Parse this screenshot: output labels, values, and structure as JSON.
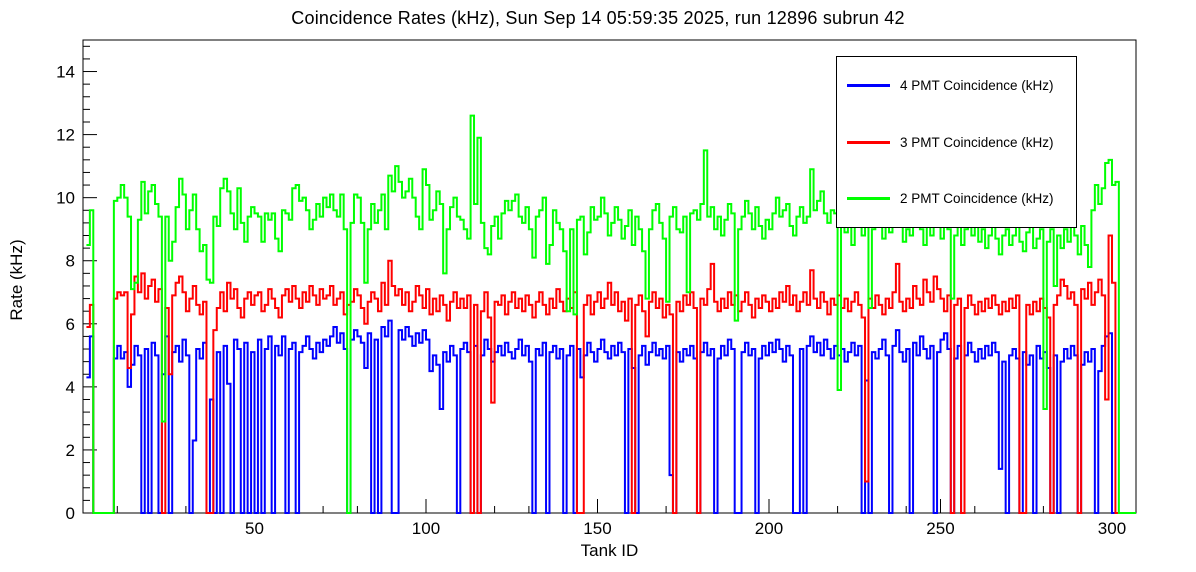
{
  "title": "Coincidence Rates (kHz), Sun Sep 14 05:59:35 2025, run 12896 subrun 42",
  "legend": {
    "items": [
      {
        "label": "4 PMT Coincidence (kHz)",
        "color": "#0000ff"
      },
      {
        "label": "3 PMT Coincidence (kHz)",
        "color": "#ff0000"
      },
      {
        "label": "2 PMT Coincidence (kHz)",
        "color": "#00ff00"
      }
    ]
  },
  "chart_data": {
    "type": "line",
    "subtype": "step-histogram",
    "title": "Coincidence Rates (kHz), Sun Sep 14 05:59:35 2025, run 12896 subrun 42",
    "xlabel": "Tank ID",
    "ylabel": "Rate (kHz)",
    "xlim": [
      0,
      307
    ],
    "ylim": [
      0,
      15
    ],
    "grid": false,
    "legend_position": "top-right",
    "x_ticks_major": [
      50,
      100,
      150,
      200,
      250,
      300
    ],
    "x_tick_labels": [
      "50",
      "100",
      "150",
      "200",
      "250",
      "300"
    ],
    "x_minor_step": 10,
    "y_ticks_major": [
      0,
      2,
      4,
      6,
      8,
      10,
      12,
      14
    ],
    "y_tick_labels": [
      "0",
      "2",
      "4",
      "6",
      "8",
      "10",
      "12",
      "14"
    ],
    "y_minor_step": 0.4,
    "x_bin_start": 1,
    "series": [
      {
        "name": "4 PMT Coincidence (kHz)",
        "color": "#0000ff",
        "values": [
          4.3,
          5.6,
          0,
          0,
          0,
          0,
          0,
          0,
          4.9,
          5.3,
          4.9,
          5.1,
          4.0,
          4.7,
          5.3,
          5.0,
          0,
          5.2,
          0,
          5.4,
          5.0,
          0,
          4.4,
          5.6,
          0,
          5.1,
          5.3,
          4.8,
          5.5,
          5.0,
          0,
          2.3,
          5.2,
          4.9,
          5.4,
          0,
          3.6,
          0,
          5.1,
          0,
          5.3,
          4.1,
          0,
          5.5,
          5.2,
          0,
          5.4,
          0,
          5.1,
          0,
          5.5,
          0,
          5.2,
          5.6,
          0,
          5.3,
          5.0,
          5.6,
          0,
          5.2,
          5.4,
          0,
          5.1,
          5.3,
          5.6,
          5.2,
          4.9,
          5.4,
          5.1,
          5.5,
          5.3,
          5.6,
          5.9,
          5.4,
          5.7,
          5.2,
          0,
          5.5,
          5.8,
          5.6,
          5.4,
          4.6,
          5.7,
          0,
          5.5,
          0,
          5.9,
          5.6,
          6.1,
          0,
          0,
          5.8,
          5.5,
          5.9,
          5.6,
          5.3,
          5.7,
          5.4,
          5.8,
          5.5,
          4.5,
          5.0,
          4.7,
          3.3,
          5.1,
          4.8,
          5.3,
          5.0,
          0,
          5.2,
          5.4,
          5.1,
          0,
          5.3,
          0,
          5.0,
          5.5,
          5.2,
          4.8,
          5.1,
          5.3,
          5.0,
          5.4,
          5.1,
          4.9,
          5.2,
          5.5,
          5.0,
          5.3,
          4.8,
          0,
          5.2,
          5.0,
          5.4,
          0,
          5.1,
          5.3,
          4.9,
          5.2,
          0,
          5.0,
          5.3,
          0,
          5.2,
          4.3,
          5.0,
          5.4,
          5.1,
          4.8,
          5.2,
          5.5,
          5.1,
          4.9,
          5.3,
          5.0,
          5.4,
          5.1,
          0,
          5.2,
          4.6,
          0,
          5.0,
          5.3,
          4.7,
          5.1,
          5.4,
          5.0,
          5.2,
          4.9,
          5.3,
          1.2,
          0,
          5.1,
          4.8,
          5.2,
          5.0,
          5.3,
          4.9,
          0,
          5.1,
          5.4,
          5.0,
          5.2,
          0,
          4.9,
          5.3,
          5.0,
          5.5,
          5.2,
          0,
          0,
          5.1,
          5.4,
          5.0,
          5.2,
          0,
          4.9,
          5.3,
          5.0,
          5.4,
          5.1,
          5.5,
          5.2,
          4.8,
          5.3,
          5.0,
          0,
          0,
          5.2,
          0,
          5.3,
          5.6,
          5.1,
          5.4,
          5.0,
          5.5,
          5.2,
          4.9,
          5.3,
          5.0,
          5.2,
          4.8,
          5.1,
          5.4,
          5.0,
          5.3,
          0,
          4.2,
          0,
          5.1,
          4.9,
          5.2,
          5.5,
          5.0,
          0,
          5.3,
          5.8,
          5.1,
          4.8,
          5.2,
          0,
          5.4,
          5.0,
          5.6,
          5.2,
          4.9,
          5.3,
          0,
          5.1,
          5.5,
          5.7,
          5.2,
          0,
          4.9,
          5.3,
          0,
          5.0,
          5.4,
          5.1,
          4.8,
          5.2,
          4.9,
          5.3,
          5.0,
          5.4,
          5.1,
          1.4,
          4.8,
          0,
          5.0,
          5.2,
          4.9,
          0,
          5.1,
          4.7,
          5.0,
          0,
          5.3,
          4.9,
          5.1,
          4.6,
          0,
          5.0,
          0,
          4.8,
          5.2,
          4.9,
          5.3,
          5.0,
          0,
          4.7,
          5.1,
          4.8,
          5.2,
          0,
          4.5,
          5.3,
          5.6,
          5.7,
          0,
          0,
          0,
          0,
          0,
          0,
          0
        ]
      },
      {
        "name": "3 PMT Coincidence (kHz)",
        "color": "#ff0000",
        "values": [
          5.9,
          6.6,
          0,
          0,
          0,
          0,
          0,
          0,
          6.8,
          7.0,
          6.9,
          7.0,
          4.6,
          6.3,
          7.5,
          7.0,
          7.6,
          6.8,
          7.2,
          7.4,
          6.7,
          7.1,
          0,
          6.5,
          4.4,
          6.9,
          7.3,
          7.5,
          7.0,
          6.4,
          6.8,
          7.2,
          6.6,
          6.3,
          6.7,
          0,
          0,
          5.8,
          6.5,
          7.0,
          6.4,
          7.3,
          6.8,
          7.1,
          6.5,
          6.2,
          6.8,
          7.0,
          6.6,
          6.9,
          7.0,
          6.4,
          6.6,
          7.1,
          6.8,
          6.5,
          6.2,
          6.9,
          7.1,
          6.7,
          7.2,
          6.8,
          6.5,
          7.0,
          6.7,
          7.2,
          6.9,
          6.6,
          7.1,
          6.8,
          6.9,
          7.2,
          6.6,
          6.8,
          7.0,
          6.3,
          6.6,
          6.7,
          7.1,
          6.9,
          6.5,
          6.0,
          6.7,
          7.0,
          6.8,
          6.4,
          7.3,
          6.6,
          8.0,
          7.2,
          6.9,
          7.1,
          6.6,
          7.0,
          6.4,
          6.7,
          7.2,
          6.9,
          6.5,
          7.1,
          6.3,
          6.8,
          6.4,
          6.9,
          6.6,
          6.1,
          6.7,
          7.0,
          6.5,
          6.8,
          6.5,
          6.9,
          0,
          6.6,
          0,
          6.4,
          7.0,
          6.2,
          3.5,
          6.7,
          6.6,
          6.9,
          6.3,
          6.7,
          7.0,
          6.5,
          6.8,
          6.4,
          6.9,
          6.6,
          6.2,
          6.7,
          7.0,
          6.6,
          6.3,
          6.8,
          6.5,
          7.1,
          6.7,
          6.4,
          6.8,
          6.5,
          7.0,
          0,
          0,
          6.6,
          6.9,
          6.3,
          6.7,
          7.0,
          6.5,
          6.8,
          7.3,
          6.6,
          7.0,
          6.4,
          6.7,
          6.1,
          6.8,
          0,
          6.6,
          6.9,
          6.4,
          5.6,
          6.7,
          7.0,
          6.5,
          6.8,
          6.2,
          6.6,
          6.3,
          0,
          6.7,
          6.4,
          6.9,
          6.6,
          7.0,
          6.5,
          0,
          6.8,
          6.6,
          7.1,
          7.9,
          6.7,
          6.4,
          6.8,
          6.5,
          7.0,
          6.6,
          6.9,
          6.4,
          6.7,
          7.0,
          6.6,
          6.2,
          6.8,
          6.5,
          6.9,
          6.7,
          6.4,
          6.8,
          6.5,
          7.0,
          6.7,
          7.2,
          6.6,
          6.9,
          6.4,
          6.7,
          7.0,
          6.6,
          7.7,
          6.8,
          6.5,
          7.0,
          6.7,
          6.3,
          6.8,
          6.6,
          6.9,
          6.5,
          6.8,
          6.4,
          6.7,
          7.0,
          6.6,
          6.2,
          1.0,
          6.8,
          6.5,
          6.9,
          6.6,
          6.3,
          6.8,
          6.5,
          7.0,
          7.9,
          6.7,
          6.4,
          6.8,
          6.5,
          7.2,
          6.8,
          6.6,
          7.4,
          7.0,
          6.7,
          7.5,
          7.1,
          6.8,
          6.4,
          6.9,
          0,
          6.6,
          6.8,
          0,
          6.5,
          6.9,
          6.6,
          6.3,
          6.7,
          6.4,
          6.8,
          6.5,
          6.9,
          6.6,
          6.3,
          6.7,
          6.4,
          6.8,
          6.5,
          6.9,
          0,
          0,
          6.6,
          6.3,
          6.7,
          6.4,
          6.8,
          6.5,
          6.2,
          0,
          6.6,
          6.9,
          7.4,
          7.2,
          6.8,
          7.0,
          6.6,
          0,
          7.1,
          6.8,
          7.3,
          6.6,
          7.0,
          7.4,
          6.9,
          3.6,
          8.8,
          7.3,
          0,
          0,
          0,
          0,
          0,
          0
        ]
      },
      {
        "name": "2 PMT Coincidence (kHz)",
        "color": "#00ff00",
        "values": [
          8.5,
          9.6,
          0,
          0,
          0,
          0,
          0,
          0,
          9.9,
          10.0,
          10.4,
          10.0,
          9.4,
          7.1,
          7.3,
          9.3,
          10.5,
          9.5,
          10.2,
          10.4,
          9.8,
          9.4,
          2.9,
          9.4,
          8.0,
          8.6,
          9.7,
          10.6,
          10.1,
          9.0,
          9.6,
          10.1,
          9.0,
          8.3,
          8.5,
          7.4,
          7.3,
          9.4,
          9.1,
          10.3,
          10.6,
          10.2,
          9.5,
          9.0,
          10.3,
          9.2,
          8.6,
          9.4,
          9.7,
          9.5,
          9.4,
          8.6,
          9.5,
          9.3,
          9.5,
          8.7,
          8.3,
          9.6,
          9.5,
          9.3,
          10.3,
          10.4,
          9.9,
          10.0,
          9.6,
          9.0,
          9.3,
          9.8,
          9.4,
          10.0,
          9.7,
          10.1,
          9.6,
          9.4,
          10.1,
          9.0,
          0,
          9.2,
          10.1,
          10.0,
          9.2,
          7.3,
          9.0,
          9.8,
          9.2,
          9.6,
          10.1,
          9.0,
          10.7,
          10.2,
          11.0,
          10.5,
          10.0,
          10.2,
          10.6,
          10.0,
          9.4,
          9.0,
          10.9,
          10.4,
          9.3,
          9.6,
          10.2,
          9.8,
          7.6,
          9.0,
          9.7,
          10.0,
          9.4,
          9.3,
          9.0,
          8.7,
          12.6,
          9.8,
          11.9,
          9.2,
          8.4,
          8.2,
          9.1,
          9.4,
          8.7,
          9.5,
          9.9,
          9.6,
          9.9,
          10.1,
          9.4,
          9.2,
          9.7,
          9.0,
          8.1,
          9.4,
          9.6,
          10.0,
          7.9,
          8.5,
          9.6,
          9.2,
          9.0,
          8.3,
          6.4,
          9.0,
          6.3,
          9.3,
          9.4,
          8.2,
          8.9,
          9.7,
          9.3,
          9.4,
          10.0,
          9.5,
          8.8,
          9.2,
          9.7,
          9.3,
          8.7,
          9.1,
          9.6,
          8.5,
          9.4,
          9.0,
          8.3,
          6.8,
          9.0,
          9.6,
          9.8,
          9.2,
          8.7,
          6.7,
          9.4,
          9.7,
          9.0,
          8.9,
          9.4,
          7.0,
          9.5,
          9.6,
          9.3,
          9.8,
          11.5,
          9.4,
          9.7,
          9.0,
          9.4,
          8.8,
          9.3,
          9.8,
          9.5,
          6.1,
          9.0,
          9.4,
          9.9,
          9.5,
          9.0,
          9.7,
          9.1,
          8.7,
          9.3,
          9.0,
          9.5,
          10.0,
          9.4,
          9.6,
          9.8,
          9.1,
          8.8,
          9.4,
          9.7,
          9.2,
          9.4,
          10.9,
          9.6,
          9.9,
          10.2,
          9.5,
          9.2,
          9.6,
          9.5,
          3.9,
          9.4,
          8.9,
          9.3,
          8.5,
          9.7,
          9.2,
          8.8,
          9.1,
          6.5,
          9.0,
          9.3,
          9.6,
          8.7,
          9.2,
          8.9,
          9.4,
          9.9,
          9.2,
          8.6,
          9.0,
          8.8,
          9.3,
          9.6,
          9.0,
          8.5,
          9.2,
          8.8,
          9.4,
          9.1,
          8.7,
          10.3,
          9.0,
          6.8,
          8.8,
          9.2,
          8.5,
          9.0,
          9.4,
          8.8,
          9.1,
          8.6,
          9.0,
          8.4,
          8.8,
          9.3,
          8.7,
          8.2,
          8.8,
          9.0,
          8.5,
          8.8,
          9.2,
          8.6,
          8.3,
          8.9,
          9.1,
          8.4,
          8.7,
          9.0,
          3.3,
          8.6,
          9.0,
          7.2,
          8.8,
          8.4,
          9.0,
          8.6,
          9.3,
          8.8,
          8.2,
          9.1,
          8.5,
          7.8,
          9.6,
          10.4,
          9.8,
          10.3,
          11.1,
          11.2,
          10.4,
          10.5,
          0,
          0,
          0,
          0,
          0
        ]
      }
    ]
  }
}
